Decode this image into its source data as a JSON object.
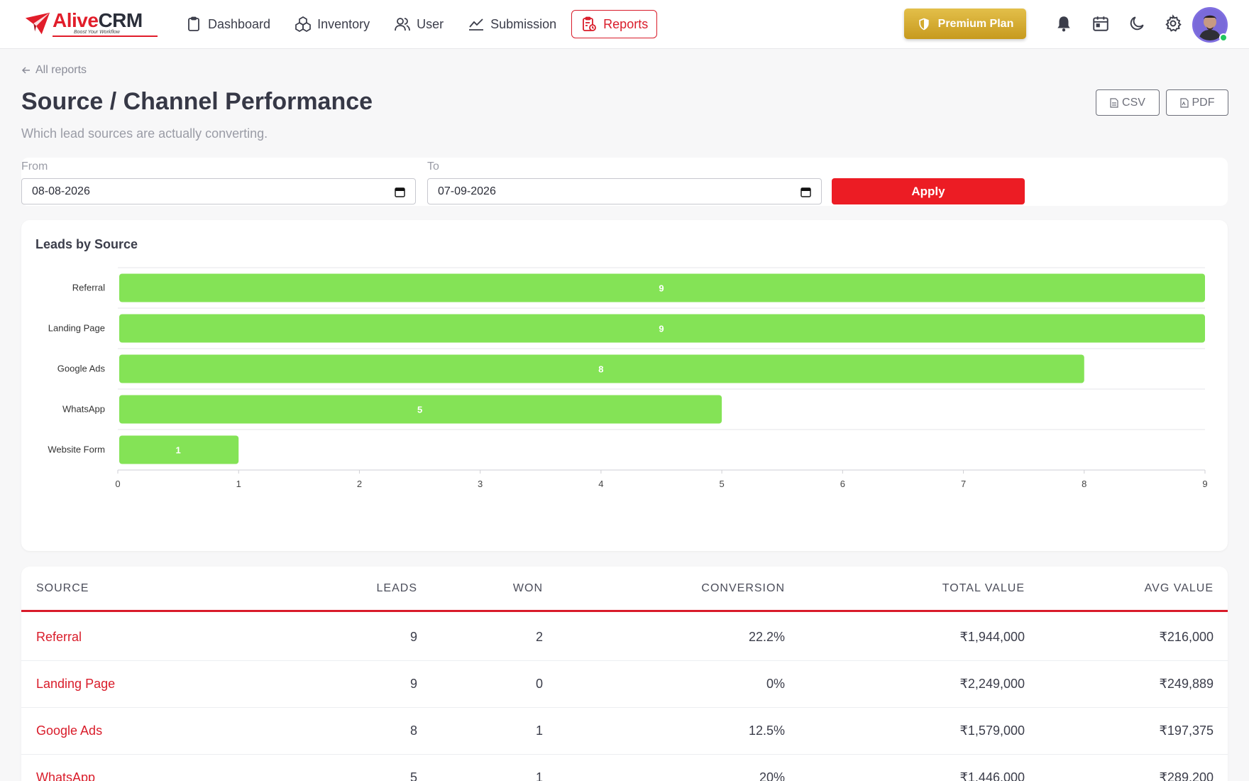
{
  "brand": {
    "name_part1": "Alive",
    "name_part2": "CRM",
    "tagline": "Boost Your Workflow"
  },
  "nav": {
    "items": [
      {
        "label": "Dashboard",
        "icon": "clipboard-icon"
      },
      {
        "label": "Inventory",
        "icon": "boxes-icon"
      },
      {
        "label": "User",
        "icon": "users-icon"
      },
      {
        "label": "Submission",
        "icon": "chart-line-icon"
      },
      {
        "label": "Reports",
        "icon": "report-icon",
        "active": true
      }
    ]
  },
  "premium": {
    "label": "Premium Plan",
    "icon": "shield-icon"
  },
  "header_icons": [
    "bell-icon",
    "calendar-icon",
    "moon-icon",
    "gear-icon"
  ],
  "page": {
    "back_label": "All reports",
    "title": "Source / Channel Performance",
    "subtitle": "Which lead sources are actually converting.",
    "csv_label": "CSV",
    "pdf_label": "PDF"
  },
  "filters": {
    "from_label": "From",
    "from_value": "08-08-2026",
    "to_label": "To",
    "to_value": "07-09-2026",
    "apply_label": "Apply"
  },
  "chart_data": {
    "type": "bar",
    "orientation": "horizontal",
    "title": "Leads by Source",
    "categories": [
      "Referral",
      "Landing Page",
      "Google Ads",
      "WhatsApp",
      "Website Form"
    ],
    "values": [
      9,
      9,
      8,
      5,
      1
    ],
    "xlim": [
      0,
      9
    ],
    "ticks": [
      0,
      1,
      2,
      3,
      4,
      5,
      6,
      7,
      8,
      9
    ],
    "bar_color": "#84e356",
    "grid": true
  },
  "table": {
    "columns": [
      "SOURCE",
      "LEADS",
      "WON",
      "CONVERSION",
      "TOTAL VALUE",
      "AVG VALUE"
    ],
    "rows": [
      {
        "source": "Referral",
        "leads": "9",
        "won": "2",
        "conversion": "22.2%",
        "total": "₹1,944,000",
        "avg": "₹216,000"
      },
      {
        "source": "Landing Page",
        "leads": "9",
        "won": "0",
        "conversion": "0%",
        "total": "₹2,249,000",
        "avg": "₹249,889"
      },
      {
        "source": "Google Ads",
        "leads": "8",
        "won": "1",
        "conversion": "12.5%",
        "total": "₹1,579,000",
        "avg": "₹197,375"
      },
      {
        "source": "WhatsApp",
        "leads": "5",
        "won": "1",
        "conversion": "20%",
        "total": "₹1,446,000",
        "avg": "₹289,200"
      }
    ]
  },
  "colors": {
    "accent": "#d91c2a",
    "apply": "#ec1c24",
    "bar": "#84e356",
    "premium": "#d4ab2e"
  }
}
